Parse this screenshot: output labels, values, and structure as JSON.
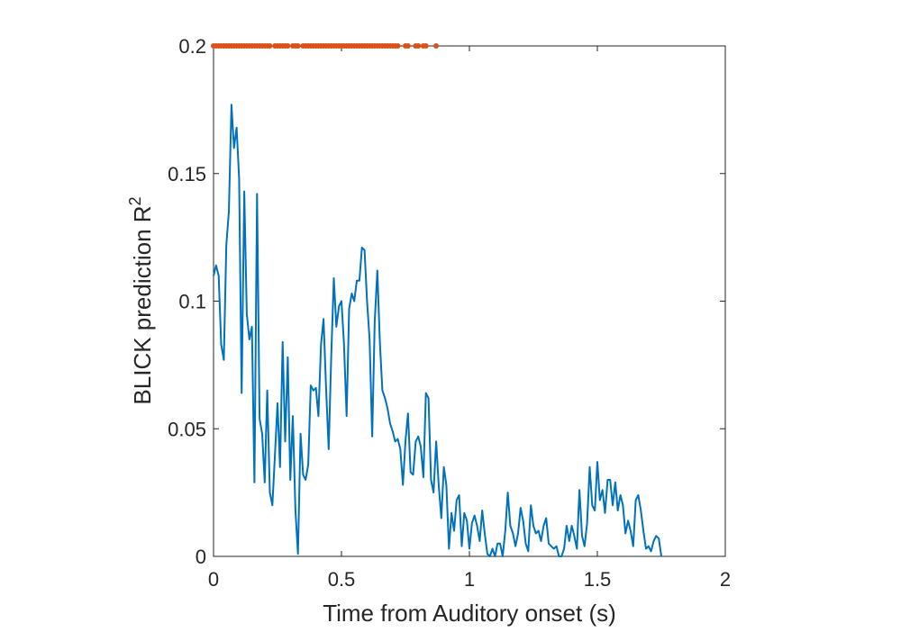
{
  "chart_data": {
    "type": "line",
    "title": "",
    "xlabel": "Time from Auditory onset (s)",
    "ylabel": "BLICK prediction R",
    "ylabel_superscript": "2",
    "xlim": [
      0,
      2
    ],
    "ylim": [
      0,
      0.2
    ],
    "xticks": [
      0,
      0.5,
      1,
      1.5,
      2
    ],
    "xtick_labels": [
      "0",
      "0.5",
      "1",
      "1.5",
      "2"
    ],
    "yticks": [
      0,
      0.05,
      0.1,
      0.15,
      0.2
    ],
    "ytick_labels": [
      "0",
      "0.05",
      "0.1",
      "0.15",
      "0.2"
    ],
    "grid": false,
    "line_color": "#0072BD",
    "marker_color": "#D95319",
    "series": [
      {
        "values": [
          [
            0.0,
            0.11
          ],
          [
            0.01,
            0.114
          ],
          [
            0.02,
            0.11
          ],
          [
            0.03,
            0.083
          ],
          [
            0.04,
            0.077
          ],
          [
            0.05,
            0.122
          ],
          [
            0.06,
            0.135
          ],
          [
            0.07,
            0.177
          ],
          [
            0.08,
            0.16
          ],
          [
            0.09,
            0.168
          ],
          [
            0.1,
            0.148
          ],
          [
            0.11,
            0.064
          ],
          [
            0.12,
            0.143
          ],
          [
            0.13,
            0.095
          ],
          [
            0.14,
            0.085
          ],
          [
            0.15,
            0.09
          ],
          [
            0.16,
            0.029
          ],
          [
            0.17,
            0.142
          ],
          [
            0.18,
            0.054
          ],
          [
            0.19,
            0.048
          ],
          [
            0.2,
            0.029
          ],
          [
            0.21,
            0.065
          ],
          [
            0.22,
            0.025
          ],
          [
            0.23,
            0.02
          ],
          [
            0.24,
            0.04
          ],
          [
            0.25,
            0.06
          ],
          [
            0.26,
            0.035
          ],
          [
            0.27,
            0.084
          ],
          [
            0.28,
            0.045
          ],
          [
            0.29,
            0.078
          ],
          [
            0.3,
            0.03
          ],
          [
            0.31,
            0.055
          ],
          [
            0.32,
            0.018
          ],
          [
            0.33,
            0.001
          ],
          [
            0.34,
            0.048
          ],
          [
            0.35,
            0.032
          ],
          [
            0.36,
            0.03
          ],
          [
            0.37,
            0.036
          ],
          [
            0.38,
            0.067
          ],
          [
            0.39,
            0.065
          ],
          [
            0.4,
            0.066
          ],
          [
            0.41,
            0.055
          ],
          [
            0.42,
            0.083
          ],
          [
            0.43,
            0.093
          ],
          [
            0.44,
            0.065
          ],
          [
            0.45,
            0.042
          ],
          [
            0.46,
            0.078
          ],
          [
            0.47,
            0.109
          ],
          [
            0.48,
            0.09
          ],
          [
            0.49,
            0.098
          ],
          [
            0.5,
            0.1
          ],
          [
            0.51,
            0.083
          ],
          [
            0.52,
            0.055
          ],
          [
            0.53,
            0.097
          ],
          [
            0.54,
            0.103
          ],
          [
            0.55,
            0.1
          ],
          [
            0.56,
            0.108
          ],
          [
            0.57,
            0.108
          ],
          [
            0.58,
            0.121
          ],
          [
            0.59,
            0.12
          ],
          [
            0.6,
            0.1
          ],
          [
            0.61,
            0.085
          ],
          [
            0.62,
            0.047
          ],
          [
            0.63,
            0.092
          ],
          [
            0.64,
            0.112
          ],
          [
            0.65,
            0.084
          ],
          [
            0.66,
            0.065
          ],
          [
            0.67,
            0.062
          ],
          [
            0.68,
            0.058
          ],
          [
            0.69,
            0.052
          ],
          [
            0.7,
            0.049
          ],
          [
            0.71,
            0.045
          ],
          [
            0.72,
            0.046
          ],
          [
            0.73,
            0.042
          ],
          [
            0.74,
            0.028
          ],
          [
            0.75,
            0.045
          ],
          [
            0.76,
            0.056
          ],
          [
            0.77,
            0.033
          ],
          [
            0.78,
            0.032
          ],
          [
            0.79,
            0.045
          ],
          [
            0.8,
            0.047
          ],
          [
            0.81,
            0.043
          ],
          [
            0.82,
            0.031
          ],
          [
            0.83,
            0.064
          ],
          [
            0.84,
            0.062
          ],
          [
            0.85,
            0.03
          ],
          [
            0.86,
            0.025
          ],
          [
            0.87,
            0.045
          ],
          [
            0.88,
            0.028
          ],
          [
            0.89,
            0.015
          ],
          [
            0.9,
            0.035
          ],
          [
            0.91,
            0.028
          ],
          [
            0.92,
            0.003
          ],
          [
            0.93,
            0.017
          ],
          [
            0.94,
            0.01
          ],
          [
            0.95,
            0.022
          ],
          [
            0.96,
            0.024
          ],
          [
            0.97,
            0.004
          ],
          [
            0.98,
            0.017
          ],
          [
            0.99,
            0.014
          ],
          [
            1.0,
            0.003
          ],
          [
            1.01,
            0.013
          ],
          [
            1.02,
            0.016
          ],
          [
            1.03,
            0.012
          ],
          [
            1.04,
            0.006
          ],
          [
            1.05,
            0.018
          ],
          [
            1.06,
            0.009
          ],
          [
            1.07,
            0.001
          ],
          [
            1.08,
            0.0
          ],
          [
            1.09,
            0.003
          ],
          [
            1.1,
            0.0
          ],
          [
            1.11,
            0.005
          ],
          [
            1.12,
            0.005
          ],
          [
            1.13,
            0.0
          ],
          [
            1.14,
            0.01
          ],
          [
            1.15,
            0.025
          ],
          [
            1.16,
            0.012
          ],
          [
            1.17,
            0.009
          ],
          [
            1.18,
            0.004
          ],
          [
            1.19,
            0.009
          ],
          [
            1.2,
            0.019
          ],
          [
            1.21,
            0.014
          ],
          [
            1.22,
            0.005
          ],
          [
            1.23,
            0.002
          ],
          [
            1.24,
            0.02
          ],
          [
            1.25,
            0.012
          ],
          [
            1.26,
            0.009
          ],
          [
            1.27,
            0.01
          ],
          [
            1.28,
            0.006
          ],
          [
            1.29,
            0.012
          ],
          [
            1.3,
            0.015
          ],
          [
            1.31,
            0.005
          ],
          [
            1.32,
            0.004
          ],
          [
            1.33,
            0.003
          ],
          [
            1.34,
            0.004
          ],
          [
            1.35,
            0.0
          ],
          [
            1.36,
            0.0
          ],
          [
            1.37,
            0.003
          ],
          [
            1.38,
            0.012
          ],
          [
            1.39,
            0.006
          ],
          [
            1.4,
            0.012
          ],
          [
            1.41,
            0.008
          ],
          [
            1.42,
            0.003
          ],
          [
            1.43,
            0.026
          ],
          [
            1.44,
            0.008
          ],
          [
            1.45,
            0.004
          ],
          [
            1.46,
            0.013
          ],
          [
            1.47,
            0.035
          ],
          [
            1.48,
            0.02
          ],
          [
            1.49,
            0.018
          ],
          [
            1.5,
            0.037
          ],
          [
            1.51,
            0.022
          ],
          [
            1.52,
            0.026
          ],
          [
            1.53,
            0.017
          ],
          [
            1.54,
            0.03
          ],
          [
            1.55,
            0.03
          ],
          [
            1.56,
            0.02
          ],
          [
            1.57,
            0.029
          ],
          [
            1.58,
            0.018
          ],
          [
            1.59,
            0.024
          ],
          [
            1.6,
            0.02
          ],
          [
            1.61,
            0.009
          ],
          [
            1.62,
            0.014
          ],
          [
            1.63,
            0.01
          ],
          [
            1.64,
            0.004
          ],
          [
            1.65,
            0.022
          ],
          [
            1.66,
            0.024
          ],
          [
            1.67,
            0.018
          ],
          [
            1.68,
            0.01
          ],
          [
            1.69,
            0.003
          ],
          [
            1.7,
            0.004
          ],
          [
            1.71,
            0.002
          ],
          [
            1.72,
            0.006
          ],
          [
            1.73,
            0.008
          ],
          [
            1.74,
            0.007
          ],
          [
            1.75,
            0.0
          ]
        ]
      },
      {
        "marker_y": 0.2,
        "x": [
          0.0,
          0.01,
          0.02,
          0.03,
          0.04,
          0.05,
          0.06,
          0.07,
          0.08,
          0.09,
          0.1,
          0.11,
          0.12,
          0.13,
          0.14,
          0.15,
          0.16,
          0.17,
          0.18,
          0.19,
          0.2,
          0.21,
          0.22,
          0.24,
          0.25,
          0.26,
          0.27,
          0.28,
          0.29,
          0.31,
          0.32,
          0.33,
          0.35,
          0.36,
          0.37,
          0.38,
          0.39,
          0.4,
          0.41,
          0.42,
          0.43,
          0.44,
          0.45,
          0.46,
          0.47,
          0.48,
          0.49,
          0.5,
          0.51,
          0.52,
          0.53,
          0.54,
          0.55,
          0.56,
          0.57,
          0.58,
          0.59,
          0.6,
          0.61,
          0.62,
          0.63,
          0.64,
          0.65,
          0.66,
          0.67,
          0.68,
          0.69,
          0.7,
          0.71,
          0.72,
          0.75,
          0.76,
          0.79,
          0.8,
          0.82,
          0.83,
          0.87
        ]
      }
    ]
  }
}
